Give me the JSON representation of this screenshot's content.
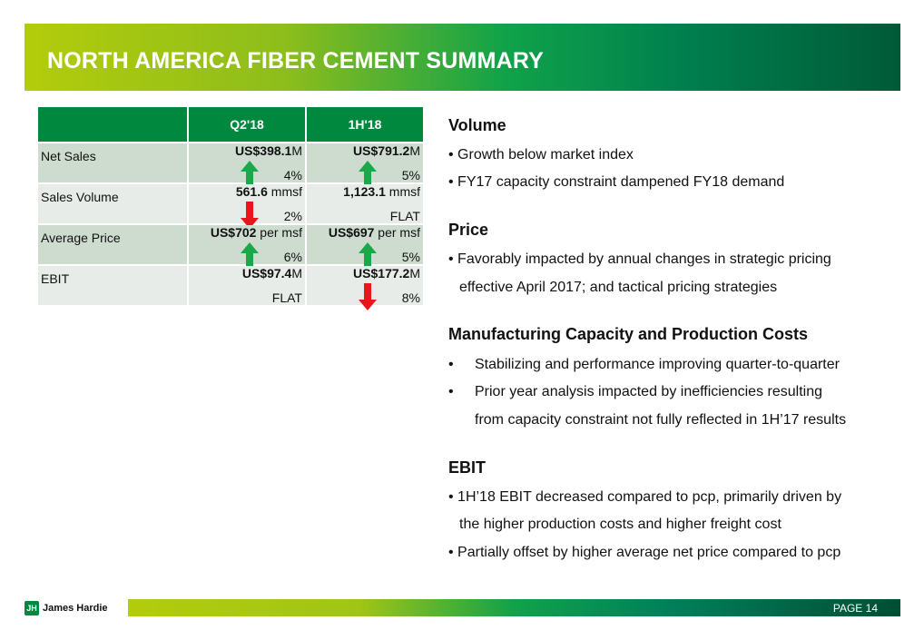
{
  "title": "NORTH AMERICA FIBER CEMENT SUMMARY",
  "table": {
    "headers": [
      "",
      "Q2'18",
      "1H'18"
    ],
    "rows": [
      {
        "label": "Net Sales",
        "q2_bold": "US$398.1",
        "q2_unit": "M",
        "q2_change": "4%",
        "q2_dir": "up",
        "h1_bold": "US$791.2",
        "h1_unit": "M",
        "h1_change": "5%",
        "h1_dir": "up"
      },
      {
        "label": "Sales Volume",
        "q2_bold": "561.6",
        "q2_unit": " mmsf",
        "q2_change": "2%",
        "q2_dir": "down",
        "h1_bold": "1,123.1",
        "h1_unit": " mmsf",
        "h1_change": "FLAT",
        "h1_dir": "none"
      },
      {
        "label": "Average Price",
        "q2_bold": "US$702",
        "q2_unit": " per msf",
        "q2_change": "6%",
        "q2_dir": "up",
        "h1_bold": "US$697",
        "h1_unit": " per msf",
        "h1_change": "5%",
        "h1_dir": "up"
      },
      {
        "label": "EBIT",
        "q2_bold": "US$97.4",
        "q2_unit": "M",
        "q2_change": "FLAT",
        "q2_dir": "none",
        "h1_bold": "US$177.2",
        "h1_unit": "M",
        "h1_change": "8%",
        "h1_dir": "down"
      }
    ]
  },
  "sections": {
    "volume": {
      "heading": "Volume",
      "lines": [
        "• Growth below market index",
        "• FY17 capacity constraint dampened FY18 demand"
      ]
    },
    "price": {
      "heading": "Price",
      "lines": [
        "• Favorably impacted by annual changes in strategic pricing",
        "effective April 2017; and tactical pricing strategies"
      ]
    },
    "mfg": {
      "heading": "Manufacturing Capacity and Production Costs",
      "lines": [
        "•",
        "Stabilizing and performance improving quarter-to-quarter",
        "•",
        "Prior year analysis impacted by inefficiencies resulting",
        "from capacity constraint not fully reflected in 1H’17 results"
      ]
    },
    "ebit": {
      "heading": "EBIT",
      "lines": [
        "• 1H’18 EBIT decreased compared to pcp, primarily driven by",
        "the higher production costs and higher freight cost",
        "• Partially offset by higher average net price compared to pcp"
      ]
    }
  },
  "footer": {
    "logo": "James Hardie",
    "page": "PAGE  14"
  },
  "colors": {
    "up": "#1aa84a",
    "down": "#e8161b",
    "header": "#00883f"
  }
}
